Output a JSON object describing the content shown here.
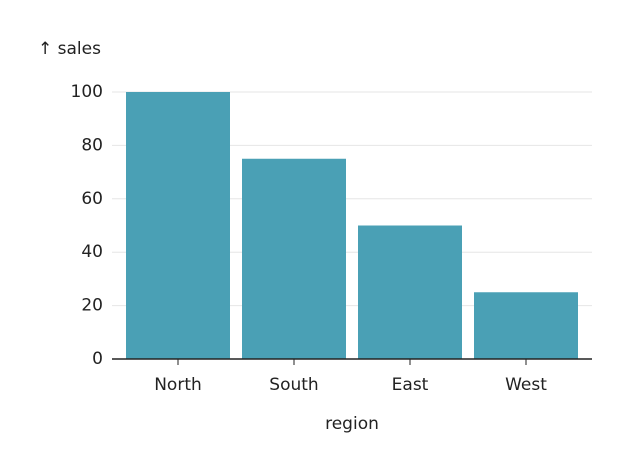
{
  "chart_data": {
    "type": "bar",
    "y_label": "↑ sales",
    "x_label": "region",
    "categories": [
      "North",
      "South",
      "East",
      "West"
    ],
    "values": [
      100,
      75,
      50,
      25
    ],
    "color": "#4aa0b5",
    "ylim": [
      0,
      100
    ],
    "yticks": [
      0,
      20,
      40,
      60,
      80,
      100
    ],
    "grid": true
  }
}
